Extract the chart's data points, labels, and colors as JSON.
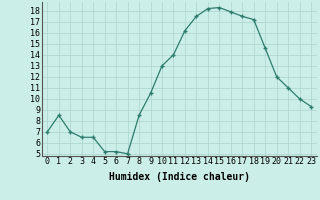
{
  "x": [
    0,
    1,
    2,
    3,
    4,
    5,
    6,
    7,
    8,
    9,
    10,
    11,
    12,
    13,
    14,
    15,
    16,
    17,
    18,
    19,
    20,
    21,
    22,
    23
  ],
  "y": [
    7.0,
    8.5,
    7.0,
    6.5,
    6.5,
    5.2,
    5.2,
    5.0,
    8.5,
    10.5,
    13.0,
    14.0,
    16.2,
    17.5,
    18.2,
    18.3,
    17.9,
    17.5,
    17.2,
    14.6,
    12.0,
    11.0,
    10.0,
    9.3
  ],
  "xlabel": "Humidex (Indice chaleur)",
  "xlim": [
    -0.5,
    23.5
  ],
  "ylim": [
    4.8,
    18.8
  ],
  "yticks": [
    5,
    6,
    7,
    8,
    9,
    10,
    11,
    12,
    13,
    14,
    15,
    16,
    17,
    18
  ],
  "xtick_labels": [
    "0",
    "1",
    "2",
    "3",
    "4",
    "5",
    "6",
    "7",
    "8",
    "9",
    "10",
    "11",
    "12",
    "13",
    "14",
    "15",
    "16",
    "17",
    "18",
    "19",
    "20",
    "21",
    "22",
    "23"
  ],
  "line_color": "#2e7d6e",
  "bg_color": "#cceee8",
  "grid_color": "#aad4cc",
  "label_fontsize": 7,
  "tick_fontsize": 6
}
